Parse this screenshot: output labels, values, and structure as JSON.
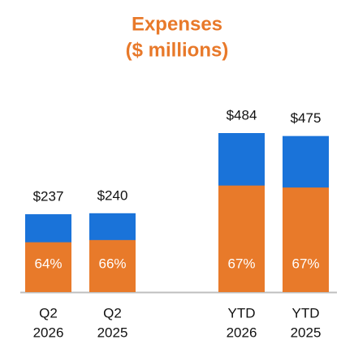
{
  "chart_data": {
    "type": "stacked-share-bar",
    "title": [
      "Expenses",
      "($ millions)"
    ],
    "categories": [
      [
        "Q2",
        "2026"
      ],
      [
        "Q2",
        "2025"
      ],
      [
        "YTD",
        "2026"
      ],
      [
        "YTD",
        "2025"
      ]
    ],
    "series": [
      {
        "name": "Total",
        "color": "#1a73d9",
        "values": [
          237,
          240,
          484,
          475
        ],
        "value_labels": [
          "$237",
          "$240",
          "$484",
          "$475"
        ]
      },
      {
        "name": "Share",
        "color": "#e87a2a",
        "values": [
          64,
          66,
          67,
          67
        ],
        "value_labels": [
          "64%",
          "66%",
          "67%",
          "67%"
        ]
      }
    ]
  }
}
